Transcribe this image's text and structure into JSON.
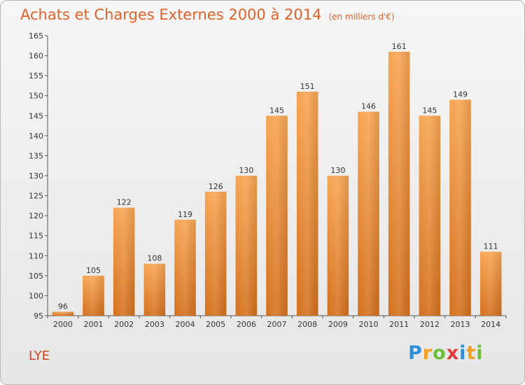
{
  "chart_data": {
    "type": "bar",
    "title": "Achats et Charges Externes 2000 à 2014",
    "subtitle": "(en milliers d'€)",
    "categories": [
      "2000",
      "2001",
      "2002",
      "2003",
      "2004",
      "2005",
      "2006",
      "2007",
      "2008",
      "2009",
      "2010",
      "2011",
      "2012",
      "2013",
      "2014"
    ],
    "values": [
      96,
      105,
      122,
      108,
      119,
      126,
      130,
      145,
      151,
      130,
      146,
      161,
      145,
      149,
      111
    ],
    "ylim": [
      95,
      165
    ],
    "yticks": [
      95,
      100,
      105,
      110,
      115,
      120,
      125,
      130,
      135,
      140,
      145,
      150,
      155,
      160,
      165
    ],
    "grid": false,
    "xlabel": "",
    "ylabel": "",
    "bar_color_top": "#f7a552",
    "bar_color_bottom": "#d4701d",
    "title_color": "#e0622b"
  },
  "place_name": "LYE",
  "logo": {
    "letters": [
      "P",
      "r",
      "o",
      "x",
      "i",
      "t",
      "i"
    ],
    "colors": [
      "#2f8fd6",
      "#f0a020",
      "#6cbf3a",
      "#e23b3b",
      "#2f8fd6",
      "#f0a020",
      "#6cbf3a"
    ]
  }
}
